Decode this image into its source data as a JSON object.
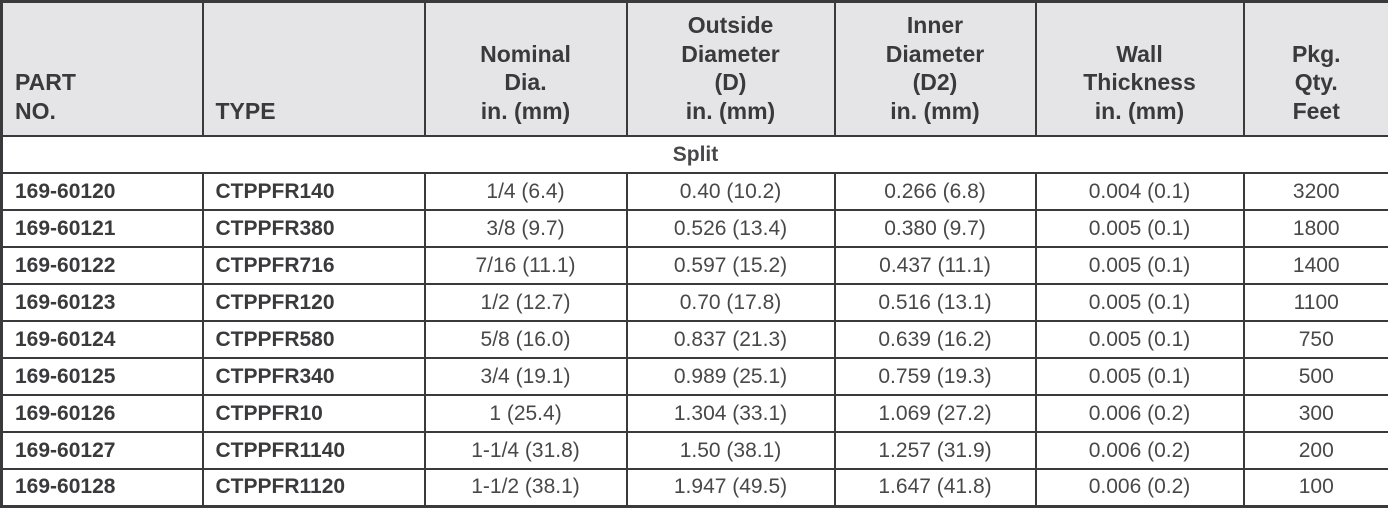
{
  "colors": {
    "border": "#3a3a3c",
    "header_bg": "#e5e5e7",
    "section_bg": "#d9ecee",
    "text_dark": "#3a3a3c",
    "text_value": "#48484a"
  },
  "table": {
    "headers": [
      {
        "id": "part-no",
        "label": "PART\nNO."
      },
      {
        "id": "type",
        "label": "TYPE"
      },
      {
        "id": "nominal-dia",
        "label": "Nominal\nDia.\nin. (mm)"
      },
      {
        "id": "outside-diameter",
        "label": "Outside\nDiameter\n(D)\nin. (mm)"
      },
      {
        "id": "inner-diameter",
        "label": "Inner\nDiameter\n(D2)\nin. (mm)"
      },
      {
        "id": "wall-thickness",
        "label": "Wall\nThickness\nin. (mm)"
      },
      {
        "id": "pkg-qty",
        "label": "Pkg.\nQty.\nFeet"
      }
    ],
    "section_label": "Split",
    "rows": [
      {
        "part_no": "169-60120",
        "type": "CTPPFR140",
        "nominal_dia": "1/4 (6.4)",
        "outside_diameter": "0.40 (10.2)",
        "inner_diameter": "0.266 (6.8)",
        "wall_thickness": "0.004 (0.1)",
        "pkg_qty": "3200"
      },
      {
        "part_no": "169-60121",
        "type": "CTPPFR380",
        "nominal_dia": "3/8 (9.7)",
        "outside_diameter": "0.526 (13.4)",
        "inner_diameter": "0.380 (9.7)",
        "wall_thickness": "0.005 (0.1)",
        "pkg_qty": "1800"
      },
      {
        "part_no": "169-60122",
        "type": "CTPPFR716",
        "nominal_dia": "7/16 (11.1)",
        "outside_diameter": "0.597 (15.2)",
        "inner_diameter": "0.437 (11.1)",
        "wall_thickness": "0.005 (0.1)",
        "pkg_qty": "1400"
      },
      {
        "part_no": "169-60123",
        "type": "CTPPFR120",
        "nominal_dia": "1/2 (12.7)",
        "outside_diameter": "0.70 (17.8)",
        "inner_diameter": "0.516 (13.1)",
        "wall_thickness": "0.005 (0.1)",
        "pkg_qty": "1100"
      },
      {
        "part_no": "169-60124",
        "type": "CTPPFR580",
        "nominal_dia": "5/8 (16.0)",
        "outside_diameter": "0.837 (21.3)",
        "inner_diameter": "0.639 (16.2)",
        "wall_thickness": "0.005 (0.1)",
        "pkg_qty": "750"
      },
      {
        "part_no": "169-60125",
        "type": "CTPPFR340",
        "nominal_dia": "3/4 (19.1)",
        "outside_diameter": "0.989 (25.1)",
        "inner_diameter": "0.759 (19.3)",
        "wall_thickness": "0.005 (0.1)",
        "pkg_qty": "500"
      },
      {
        "part_no": "169-60126",
        "type": "CTPPFR10",
        "nominal_dia": "1 (25.4)",
        "outside_diameter": "1.304 (33.1)",
        "inner_diameter": "1.069 (27.2)",
        "wall_thickness": "0.006 (0.2)",
        "pkg_qty": "300"
      },
      {
        "part_no": "169-60127",
        "type": "CTPPFR1140",
        "nominal_dia": "1-1/4 (31.8)",
        "outside_diameter": "1.50 (38.1)",
        "inner_diameter": "1.257 (31.9)",
        "wall_thickness": "0.006 (0.2)",
        "pkg_qty": "200"
      },
      {
        "part_no": "169-60128",
        "type": "CTPPFR1120",
        "nominal_dia": "1-1/2 (38.1)",
        "outside_diameter": "1.947 (49.5)",
        "inner_diameter": "1.647 (41.8)",
        "wall_thickness": "0.006 (0.2)",
        "pkg_qty": "100"
      }
    ]
  }
}
